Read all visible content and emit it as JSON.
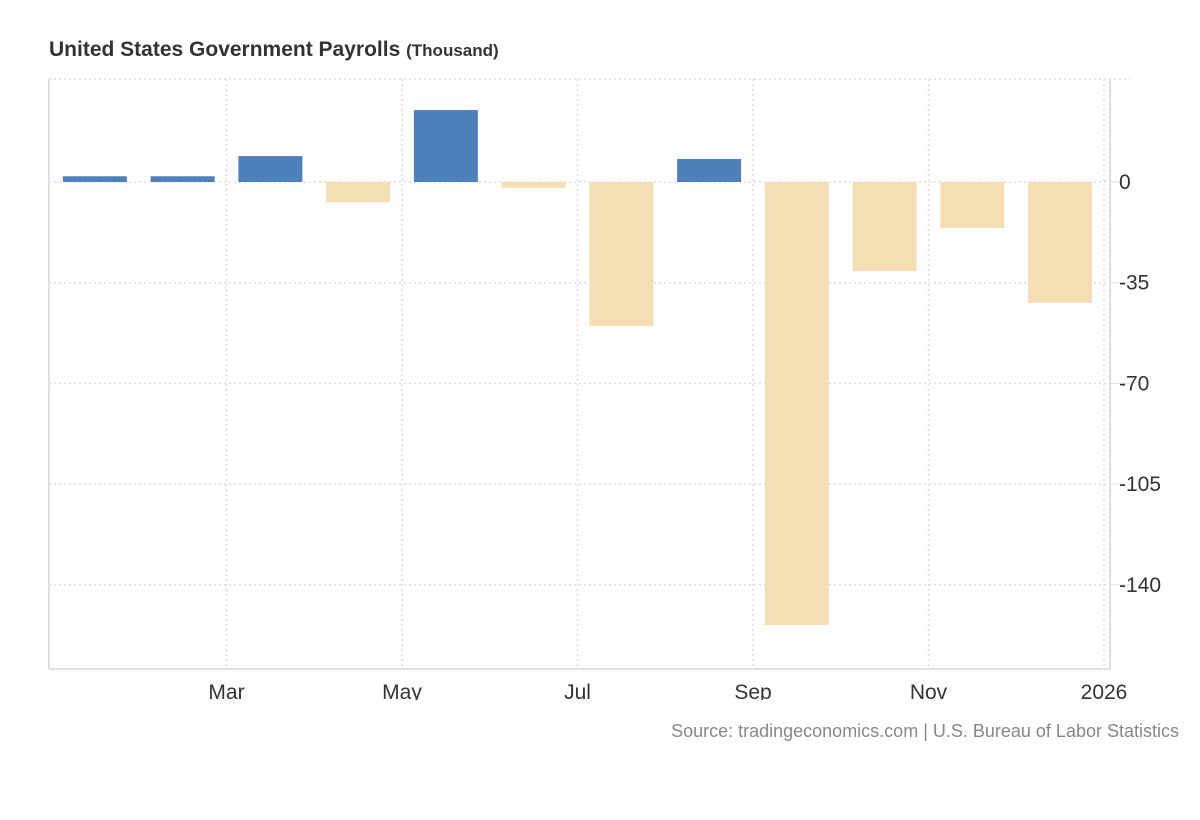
{
  "header": {
    "title": "United States Government Payrolls",
    "unit": "(Thousand)"
  },
  "footer": {
    "source": "Source: tradingeconomics.com | U.S. Bureau of Labor Statistics"
  },
  "colors": {
    "positive": "#4e80bc",
    "negative": "#f5deb3",
    "grid": "#dddddd",
    "axis": "#e0e0e0",
    "text": "#333333"
  },
  "chart_data": {
    "type": "bar",
    "title": "United States Government Payrolls (Thousand)",
    "xlabel": "",
    "ylabel": "",
    "categories": [
      "2025-01",
      "2025-02",
      "2025-03",
      "2025-04",
      "2025-05",
      "2025-06",
      "2025-07",
      "2025-08",
      "2025-09",
      "2025-10",
      "2025-11",
      "2025-12"
    ],
    "values": [
      2,
      2,
      9,
      -7,
      25,
      -2,
      -50,
      8,
      -154,
      -31,
      -16,
      -42
    ],
    "ylim": [
      -170,
      35
    ],
    "yticks": [
      0,
      -35,
      -70,
      -105,
      -140
    ],
    "ytick_labels": [
      "0",
      "-35",
      "-70",
      "-105",
      "-140"
    ],
    "xtick_labels": [
      {
        "label": "Mar",
        "position": 1.5
      },
      {
        "label": "May",
        "position": 3.5
      },
      {
        "label": "Jul",
        "position": 5.5
      },
      {
        "label": "Sep",
        "position": 7.5
      },
      {
        "label": "Nov",
        "position": 9.5
      },
      {
        "label": "2026",
        "position": 11.5
      }
    ],
    "y_axis_side": "right",
    "grid": true,
    "legend": "none"
  }
}
